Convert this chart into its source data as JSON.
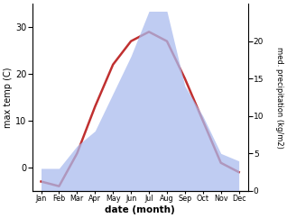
{
  "months": [
    "Jan",
    "Feb",
    "Mar",
    "Apr",
    "May",
    "Jun",
    "Jul",
    "Aug",
    "Sep",
    "Oct",
    "Nov",
    "Dec"
  ],
  "month_indices": [
    1,
    2,
    3,
    4,
    5,
    6,
    7,
    8,
    9,
    10,
    11,
    12
  ],
  "temperature": [
    -3,
    -4,
    3,
    13,
    22,
    27,
    29,
    27,
    19,
    10,
    1,
    -1
  ],
  "precipitation": [
    3,
    3,
    6,
    8,
    13,
    18,
    24,
    24,
    14,
    10,
    5,
    4
  ],
  "temp_color": "#c03030",
  "precip_fill_color": "#aabbee",
  "precip_fill_alpha": 0.75,
  "xlabel": "date (month)",
  "ylabel_left": "max temp (C)",
  "ylabel_right": "med. precipitation (kg/m2)",
  "ylim_left": [
    -5,
    35
  ],
  "ylim_right": [
    0,
    25
  ],
  "yticks_left": [
    0,
    10,
    20,
    30
  ],
  "yticks_right": [
    0,
    5,
    10,
    15,
    20
  ],
  "figsize": [
    3.18,
    2.42
  ],
  "dpi": 100
}
